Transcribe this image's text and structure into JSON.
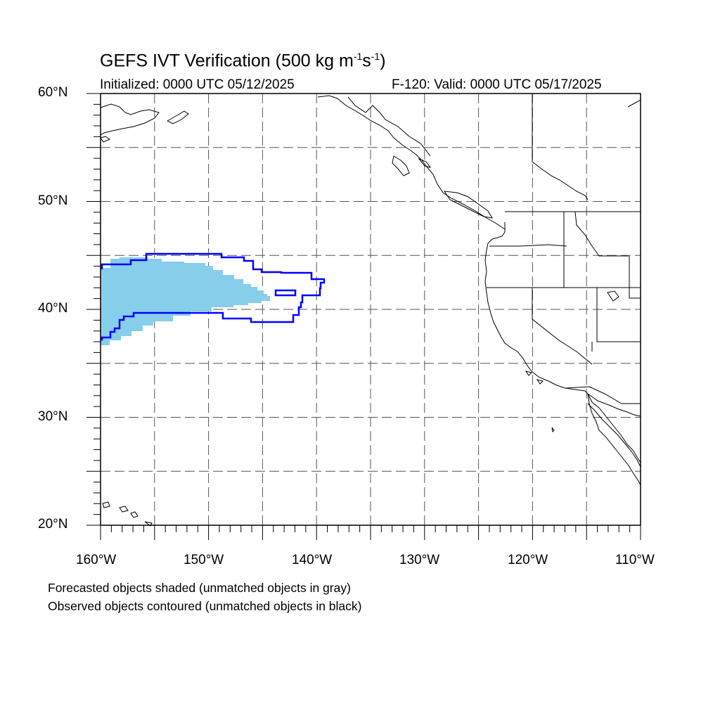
{
  "title": {
    "main": "GEFS IVT Verification (500 kg m",
    "exp1": "-1",
    "mid": "s",
    "exp2": "-1",
    "end": ")"
  },
  "subtitle": {
    "initialized": "Initialized: 0000 UTC 05/12/2025",
    "valid": "F-120: Valid: 0000 UTC 05/17/2025"
  },
  "axes": {
    "lat_labels": [
      "60°N",
      "50°N",
      "40°N",
      "30°N",
      "20°N"
    ],
    "lon_labels": [
      "160°W",
      "150°W",
      "140°W",
      "130°W",
      "120°W",
      "110°W"
    ],
    "lat_range": [
      20,
      60
    ],
    "lon_range": [
      -160,
      -110
    ],
    "grid": "dashed, every 5 degrees"
  },
  "legend": {
    "line1": "Forecasted objects shaded (unmatched objects in gray)",
    "line2": "Observed objects contoured (unmatched objects in black)"
  },
  "colors": {
    "forecast_fill": "#87ceeb",
    "observed_contour": "#0000ff",
    "grid": "#555555",
    "coastline": "#000000"
  }
}
